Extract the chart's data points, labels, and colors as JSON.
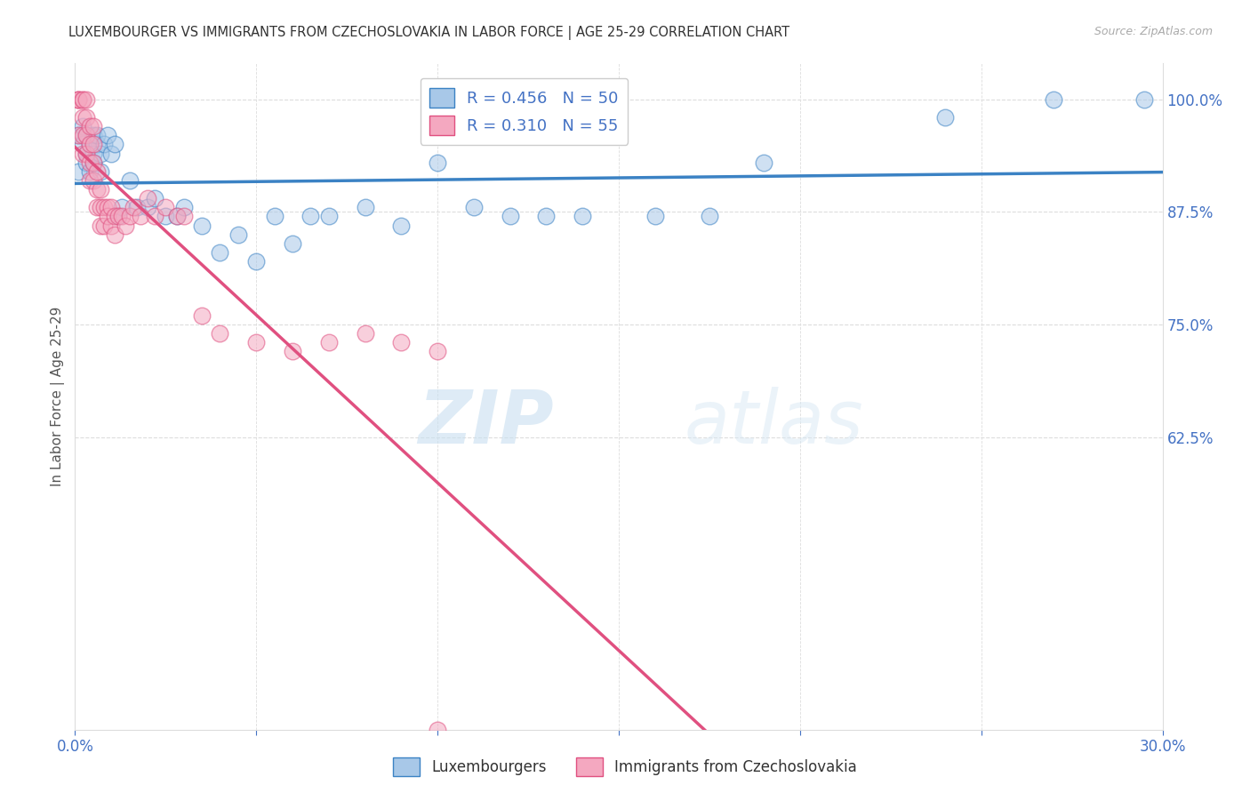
{
  "title": "LUXEMBOURGER VS IMMIGRANTS FROM CZECHOSLOVAKIA IN LABOR FORCE | AGE 25-29 CORRELATION CHART",
  "source": "Source: ZipAtlas.com",
  "xlabel": "",
  "ylabel": "In Labor Force | Age 25-29",
  "xlim": [
    0.0,
    0.3
  ],
  "ylim": [
    0.3,
    1.04
  ],
  "xticks": [
    0.0,
    0.05,
    0.1,
    0.15,
    0.2,
    0.25,
    0.3
  ],
  "xtick_labels": [
    "0.0%",
    "",
    "",
    "",
    "",
    "",
    "30.0%"
  ],
  "yticks": [
    0.625,
    0.75,
    0.875,
    1.0
  ],
  "ytick_labels": [
    "62.5%",
    "75.0%",
    "87.5%",
    "100.0%"
  ],
  "blue_R": 0.456,
  "blue_N": 50,
  "pink_R": 0.31,
  "pink_N": 55,
  "blue_color": "#a8c8e8",
  "pink_color": "#f4a8c0",
  "blue_line_color": "#3b82c4",
  "pink_line_color": "#e05080",
  "legend_label_blue": "Luxembourgers",
  "legend_label_pink": "Immigrants from Czechoslovakia",
  "blue_scatter_x": [
    0.001,
    0.001,
    0.002,
    0.002,
    0.003,
    0.003,
    0.003,
    0.004,
    0.004,
    0.005,
    0.005,
    0.005,
    0.006,
    0.006,
    0.007,
    0.007,
    0.008,
    0.009,
    0.01,
    0.011,
    0.012,
    0.013,
    0.015,
    0.017,
    0.02,
    0.022,
    0.025,
    0.028,
    0.03,
    0.035,
    0.04,
    0.045,
    0.05,
    0.055,
    0.06,
    0.065,
    0.07,
    0.08,
    0.09,
    0.1,
    0.11,
    0.12,
    0.13,
    0.14,
    0.16,
    0.175,
    0.19,
    0.24,
    0.27,
    0.295
  ],
  "blue_scatter_y": [
    0.92,
    0.96,
    0.95,
    0.97,
    0.93,
    0.94,
    0.96,
    0.95,
    0.92,
    0.96,
    0.94,
    0.93,
    0.95,
    0.96,
    0.94,
    0.92,
    0.95,
    0.96,
    0.94,
    0.95,
    0.87,
    0.88,
    0.91,
    0.88,
    0.88,
    0.89,
    0.87,
    0.87,
    0.88,
    0.86,
    0.83,
    0.85,
    0.82,
    0.87,
    0.84,
    0.87,
    0.87,
    0.88,
    0.86,
    0.93,
    0.88,
    0.87,
    0.87,
    0.87,
    0.87,
    0.87,
    0.93,
    0.98,
    1.0,
    1.0
  ],
  "pink_scatter_x": [
    0.001,
    0.001,
    0.001,
    0.001,
    0.002,
    0.002,
    0.002,
    0.002,
    0.002,
    0.003,
    0.003,
    0.003,
    0.003,
    0.004,
    0.004,
    0.004,
    0.004,
    0.005,
    0.005,
    0.005,
    0.005,
    0.006,
    0.006,
    0.006,
    0.007,
    0.007,
    0.007,
    0.008,
    0.008,
    0.009,
    0.009,
    0.01,
    0.01,
    0.011,
    0.011,
    0.012,
    0.013,
    0.014,
    0.015,
    0.016,
    0.018,
    0.02,
    0.022,
    0.025,
    0.028,
    0.03,
    0.035,
    0.04,
    0.05,
    0.06,
    0.07,
    0.08,
    0.09,
    0.1,
    0.1
  ],
  "pink_scatter_y": [
    1.0,
    1.0,
    1.0,
    0.96,
    1.0,
    1.0,
    0.98,
    0.96,
    0.94,
    1.0,
    0.98,
    0.96,
    0.94,
    0.97,
    0.95,
    0.93,
    0.91,
    0.97,
    0.95,
    0.93,
    0.91,
    0.92,
    0.9,
    0.88,
    0.9,
    0.88,
    0.86,
    0.88,
    0.86,
    0.88,
    0.87,
    0.88,
    0.86,
    0.87,
    0.85,
    0.87,
    0.87,
    0.86,
    0.87,
    0.88,
    0.87,
    0.89,
    0.87,
    0.88,
    0.87,
    0.87,
    0.76,
    0.74,
    0.73,
    0.72,
    0.73,
    0.74,
    0.73,
    0.72,
    0.3
  ],
  "watermark_zip": "ZIP",
  "watermark_atlas": "atlas",
  "title_color": "#333333",
  "axis_color": "#4472c4",
  "ylabel_color": "#555555",
  "grid_color": "#dddddd",
  "blue_trend_x0": 0.0,
  "blue_trend_x1": 0.3,
  "pink_trend_x0": 0.0,
  "pink_trend_x1": 0.3
}
